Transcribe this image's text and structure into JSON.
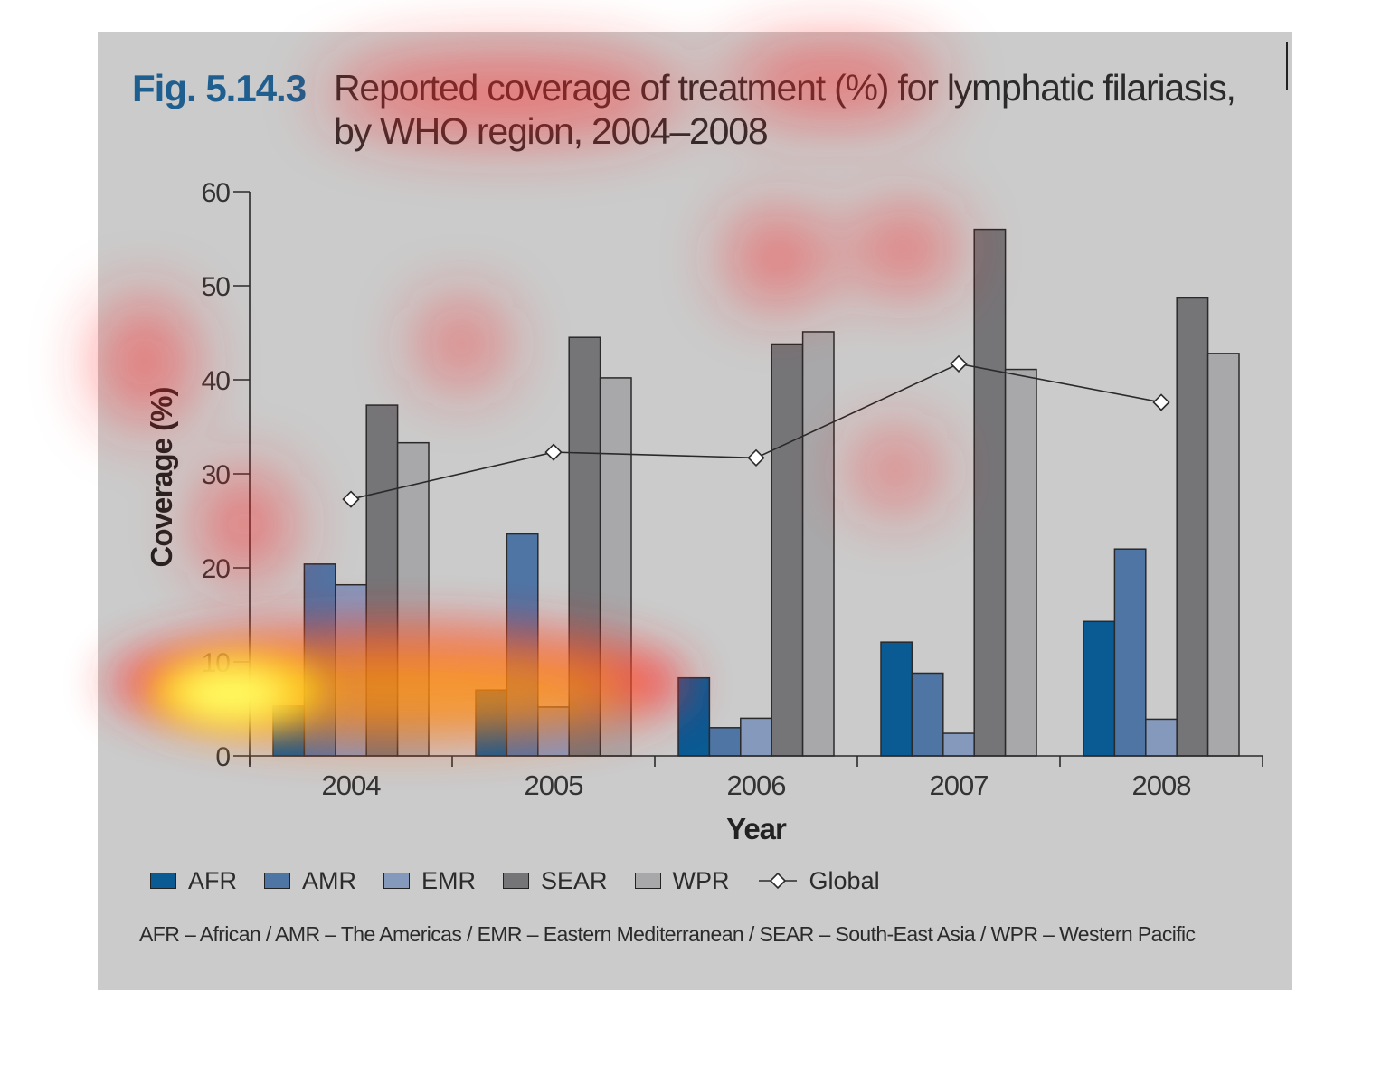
{
  "figure": {
    "number": "Fig. 5.14.3",
    "title_line_1": "Reported coverage of treatment (%) for lymphatic filariasis,",
    "title_line_2": "by WHO region, 2004–2008",
    "footnote": "AFR – African / AMR – The Americas / EMR – Eastern Mediterranean / SEAR – South-East Asia / WPR – Western Pacific"
  },
  "chart_data": {
    "type": "bar",
    "categories": [
      "2004",
      "2005",
      "2006",
      "2007",
      "2008"
    ],
    "xlabel": "Year",
    "ylabel": "Coverage (%)",
    "ylim": [
      0,
      60
    ],
    "yticks": [
      "0",
      "10",
      "20",
      "30",
      "40",
      "50",
      "60"
    ],
    "grid": false,
    "legend_position": "bottom",
    "series": [
      {
        "name": "AFR",
        "color": "#0a5a94",
        "values": [
          5.3,
          7.0,
          8.3,
          12.1,
          14.3
        ]
      },
      {
        "name": "AMR",
        "color": "#4f75a5",
        "values": [
          20.4,
          23.6,
          3.0,
          8.8,
          22.0
        ]
      },
      {
        "name": "EMR",
        "color": "#8599bd",
        "values": [
          18.2,
          5.2,
          4.0,
          2.4,
          3.9
        ]
      },
      {
        "name": "SEAR",
        "color": "#757578",
        "values": [
          37.3,
          44.5,
          43.8,
          56.0,
          48.7
        ]
      },
      {
        "name": "WPR",
        "color": "#a8a8aa",
        "values": [
          33.3,
          40.2,
          45.1,
          41.1,
          42.8
        ]
      }
    ],
    "line_series": {
      "name": "Global",
      "marker": "diamond",
      "values": [
        27.3,
        32.3,
        31.7,
        41.7,
        37.6
      ]
    }
  },
  "legend": {
    "items": [
      {
        "label": "AFR",
        "color": "#0a5a94"
      },
      {
        "label": "AMR",
        "color": "#4f75a5"
      },
      {
        "label": "EMR",
        "color": "#8599bd"
      },
      {
        "label": "SEAR",
        "color": "#757578"
      },
      {
        "label": "WPR",
        "color": "#a8a8aa"
      }
    ],
    "line_label": "Global"
  },
  "overlay": {
    "type": "attention heatmap",
    "colors": [
      "#ff2020",
      "#ffa000",
      "#ffff40"
    ]
  }
}
